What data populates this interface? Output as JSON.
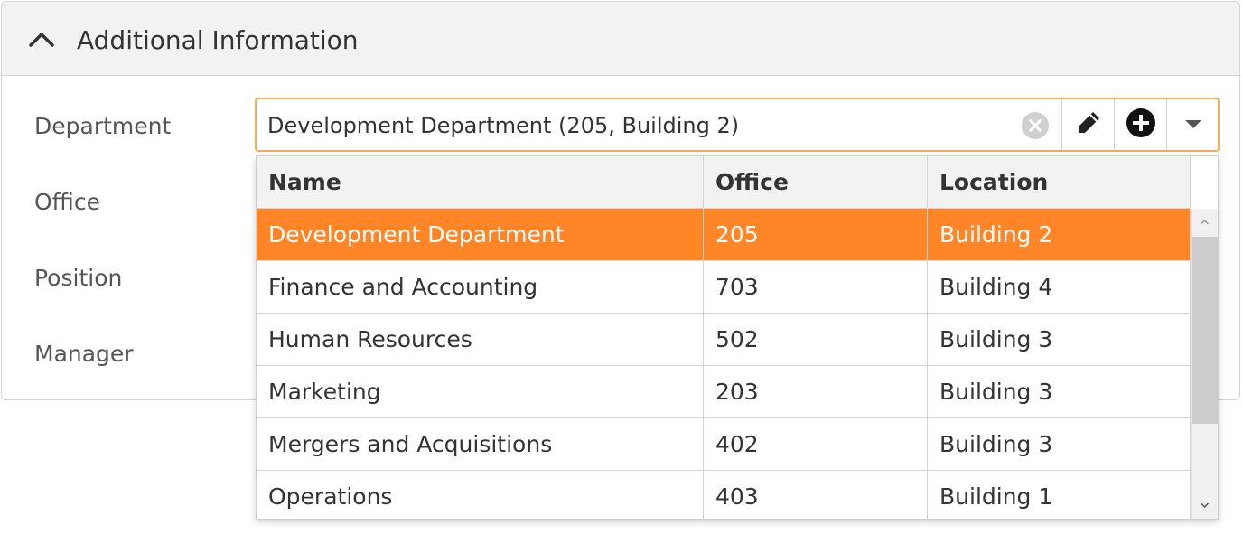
{
  "panel": {
    "title": "Additional Information",
    "labels": {
      "department": "Department",
      "office": "Office",
      "position": "Position",
      "manager": "Manager"
    }
  },
  "editor": {
    "value": "Development Department (205, Building 2)",
    "buttons": [
      "clear-icon",
      "pencil-icon",
      "plus-circle-icon",
      "dropdown-arrow-icon"
    ]
  },
  "dropdown": {
    "columns": {
      "name": "Name",
      "office": "Office",
      "location": "Location"
    },
    "rows": [
      {
        "name": "Development Department",
        "office": "205",
        "location": "Building 2",
        "selected": true
      },
      {
        "name": "Finance and Accounting",
        "office": "703",
        "location": "Building 4"
      },
      {
        "name": "Human Resources",
        "office": "502",
        "location": "Building 3"
      },
      {
        "name": "Marketing",
        "office": "203",
        "location": "Building 3"
      },
      {
        "name": "Mergers and Acquisitions",
        "office": "402",
        "location": "Building 3"
      },
      {
        "name": "Operations",
        "office": "403",
        "location": "Building 1"
      }
    ]
  },
  "colors": {
    "accent": "#ff8526",
    "focus_border": "#f8a95c",
    "header_bg": "#f2f2f2"
  }
}
